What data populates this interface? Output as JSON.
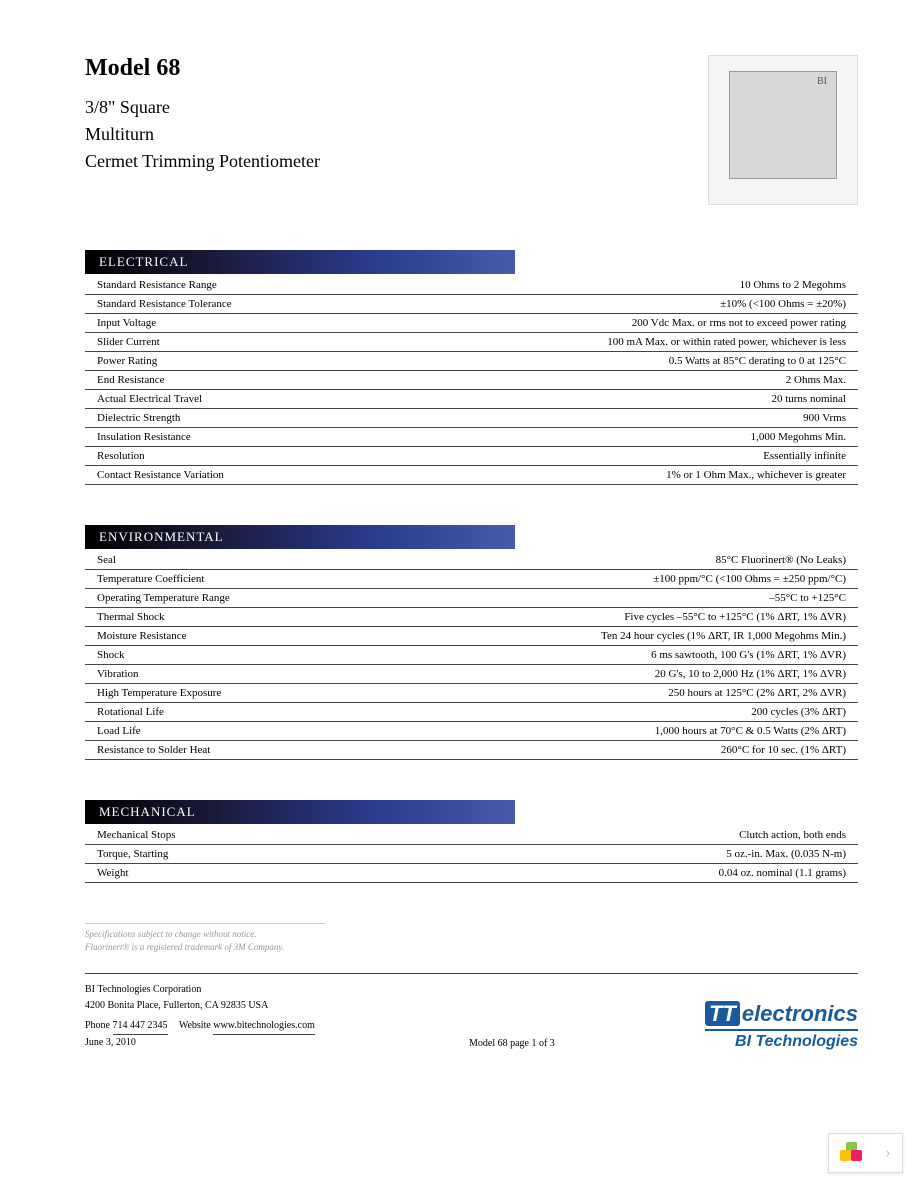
{
  "title": "Model 68",
  "subtitle_lines": [
    "3/8\" Square",
    "Multiturn",
    "Cermet Trimming Potentiometer"
  ],
  "sections": [
    {
      "header": "ELECTRICAL",
      "rows": [
        {
          "label": "Standard Resistance Range",
          "value": "10 Ohms to 2 Megohms"
        },
        {
          "label": "Standard Resistance Tolerance",
          "value": "±10% (<100 Ohms = ±20%)"
        },
        {
          "label": "Input Voltage",
          "value": "200 Vdc Max. or rms not to exceed power rating"
        },
        {
          "label": "Slider Current",
          "value": "100 mA Max. or within rated power, whichever is less"
        },
        {
          "label": "Power Rating",
          "value": "0.5 Watts at 85°C derating to 0 at 125°C"
        },
        {
          "label": "End Resistance",
          "value": "2 Ohms Max."
        },
        {
          "label": "Actual Electrical Travel",
          "value": "20 turns nominal"
        },
        {
          "label": "Dielectric Strength",
          "value": "900 Vrms"
        },
        {
          "label": "Insulation Resistance",
          "value": "1,000 Megohms Min."
        },
        {
          "label": "Resolution",
          "value": "Essentially infinite"
        },
        {
          "label": "Contact Resistance Variation",
          "value": "1% or 1 Ohm Max., whichever is greater"
        }
      ]
    },
    {
      "header": "ENVIRONMENTAL",
      "rows": [
        {
          "label": "Seal",
          "value": "85°C Fluorinert® (No Leaks)"
        },
        {
          "label": "Temperature Coefficient",
          "value": "±100 ppm/°C (<100 Ohms = ±250 ppm/°C)"
        },
        {
          "label": "Operating Temperature Range",
          "value": "–55°C to +125°C"
        },
        {
          "label": "Thermal Shock",
          "value": "Five cycles –55°C to +125°C (1% ΔRT, 1% ΔVR)"
        },
        {
          "label": "Moisture Resistance",
          "value": "Ten 24 hour cycles (1% ΔRT, IR 1,000 Megohms Min.)"
        },
        {
          "label": "Shock",
          "value": "6 ms sawtooth, 100 G's (1% ΔRT, 1% ΔVR)"
        },
        {
          "label": "Vibration",
          "value": "20 G's, 10 to 2,000 Hz (1% ΔRT, 1% ΔVR)"
        },
        {
          "label": "High Temperature Exposure",
          "value": "250 hours at 125°C (2% ΔRT, 2% ΔVR)"
        },
        {
          "label": "Rotational Life",
          "value": "200 cycles (3% ΔRT)"
        },
        {
          "label": "Load Life",
          "value": "1,000 hours at 70°C & 0.5 Watts (2% ΔRT)"
        },
        {
          "label": "Resistance to Solder Heat",
          "value": "260°C for 10 sec. (1% ΔRT)"
        }
      ]
    },
    {
      "header": "MECHANICAL",
      "rows": [
        {
          "label": "Mechanical Stops",
          "value": "Clutch action, both ends"
        },
        {
          "label": "Torque, Starting",
          "value": "5 oz.-in. Max. (0.035 N-m)"
        },
        {
          "label": "Weight",
          "value": "0.04 oz. nominal (1.1 grams)"
        }
      ]
    }
  ],
  "footnotes": [
    "Specifications subject to change without notice.",
    "Fluorinert® is a registered trademark of 3M Company."
  ],
  "footer": {
    "company": "BI Technologies Corporation",
    "address": "4200 Bonita Place, Fullerton, CA 92835 USA",
    "phone_label": "Phone",
    "phone": "714 447 2345",
    "web_label": "Website",
    "web": "www.bitechnologies.com",
    "date": "June 3, 2010",
    "pageinfo": "Model 68 page 1 of 3"
  },
  "logo": {
    "main_prefix": "TT",
    "main_text": "electronics",
    "sub_text": "BI Technologies"
  },
  "colors": {
    "section_gradient_start": "#000000",
    "section_gradient_end": "#4a5aaa",
    "logo_blue": "#1a5a9a",
    "rule": "#444444"
  }
}
